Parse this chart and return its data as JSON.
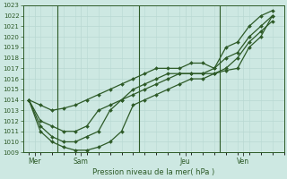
{
  "title": "Pression niveau de la mer( hPa )",
  "bg_color": "#cde8e2",
  "grid_color": "#b8d8d2",
  "line_color": "#2d5a27",
  "ylim": [
    1009,
    1023
  ],
  "yticks": [
    1009,
    1010,
    1011,
    1012,
    1013,
    1014,
    1015,
    1016,
    1017,
    1018,
    1019,
    1020,
    1021,
    1022,
    1023
  ],
  "day_labels": [
    "Mer",
    "Sam",
    "Jeu",
    "Ven"
  ],
  "day_positions": [
    0.5,
    4.5,
    13.5,
    18.5
  ],
  "vline_positions": [
    2.5,
    9.5,
    16.5
  ],
  "xlim": [
    -0.5,
    22
  ],
  "lines": [
    {
      "x": [
        0,
        1,
        2,
        3,
        4,
        5,
        6,
        7,
        8,
        9,
        10,
        11,
        12,
        13,
        14,
        15,
        16,
        17,
        18,
        19,
        20,
        21
      ],
      "y": [
        1014,
        1013.5,
        1013,
        1013.2,
        1013.5,
        1014,
        1014.5,
        1015,
        1015.5,
        1016,
        1016.5,
        1017,
        1017,
        1017,
        1017.5,
        1017.5,
        1017,
        1019,
        1019.5,
        1021,
        1022,
        1022.5
      ]
    },
    {
      "x": [
        0,
        1,
        2,
        3,
        4,
        5,
        6,
        7,
        8,
        9,
        10,
        11,
        12,
        13,
        14,
        15,
        16,
        17,
        18,
        19,
        20,
        21
      ],
      "y": [
        1014,
        1012,
        1011.5,
        1011,
        1011,
        1011.5,
        1013,
        1013.5,
        1014,
        1015,
        1015.5,
        1016,
        1016.5,
        1016.5,
        1016.5,
        1016.5,
        1017,
        1018,
        1018.5,
        1020,
        1021,
        1022
      ]
    },
    {
      "x": [
        0,
        1,
        2,
        3,
        4,
        5,
        6,
        7,
        8,
        9,
        10,
        11,
        12,
        13,
        14,
        15,
        16,
        17,
        18,
        19,
        20,
        21
      ],
      "y": [
        1014,
        1011.5,
        1010.5,
        1010,
        1010,
        1010.5,
        1011,
        1013,
        1014,
        1014.5,
        1015,
        1015.5,
        1016,
        1016.5,
        1016.5,
        1016.5,
        1016.5,
        1017,
        1018,
        1019.5,
        1020.5,
        1021.5
      ]
    },
    {
      "x": [
        0,
        1,
        2,
        3,
        4,
        5,
        6,
        7,
        8,
        9,
        10,
        11,
        12,
        13,
        14,
        15,
        16,
        17,
        18,
        19,
        20,
        21
      ],
      "y": [
        1014,
        1011,
        1010,
        1009.5,
        1009.2,
        1009.2,
        1009.5,
        1010,
        1011,
        1013.5,
        1014,
        1014.5,
        1015,
        1015.5,
        1016,
        1016,
        1016.5,
        1016.8,
        1017,
        1019,
        1020,
        1022
      ]
    }
  ]
}
